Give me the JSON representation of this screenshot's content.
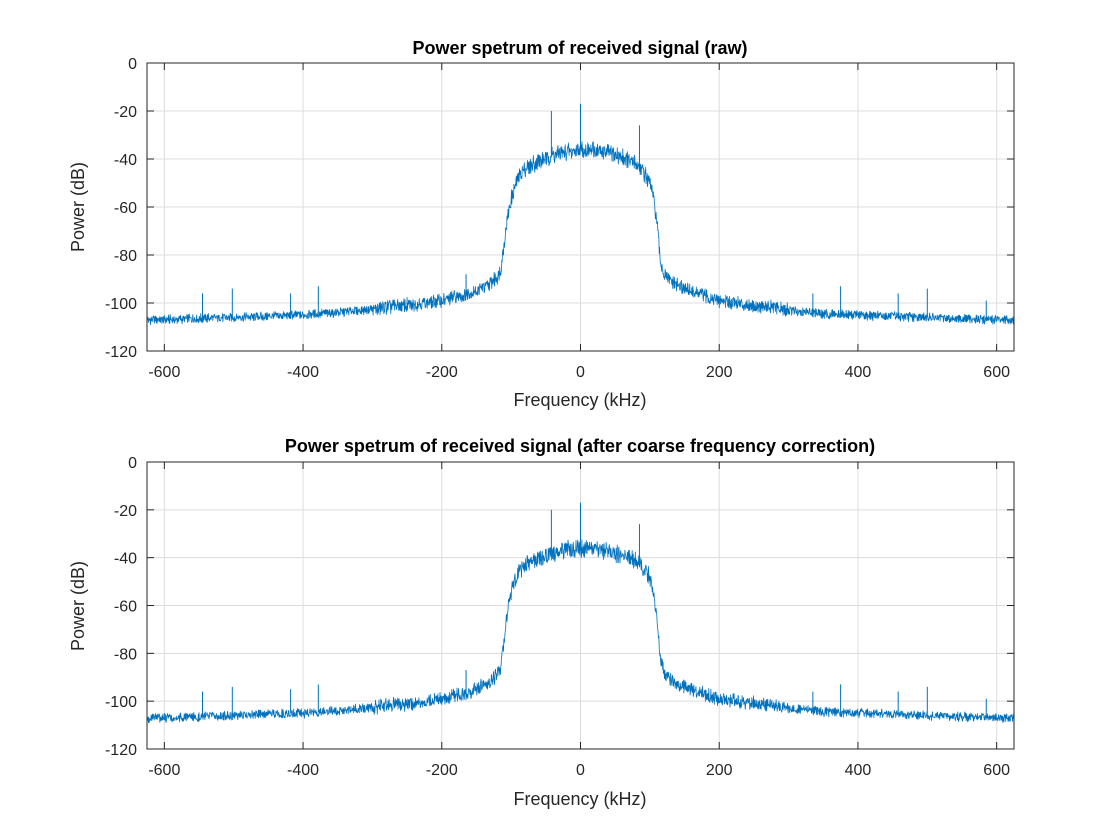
{
  "colors": {
    "series": "#0072BD",
    "axis": "#262626",
    "grid": "#dcdcdc"
  },
  "chart_data": [
    {
      "type": "line",
      "title": "Power spetrum of received signal (raw)",
      "xlabel": "Frequency (kHz)",
      "ylabel": "Power (dB)",
      "xlim": [
        -625,
        625
      ],
      "ylim": [
        -120,
        0
      ],
      "xticks": [
        -600,
        -400,
        -200,
        0,
        200,
        400,
        600
      ],
      "yticks": [
        0,
        -20,
        -40,
        -60,
        -80,
        -100,
        -120
      ],
      "grid": true,
      "series": [
        {
          "x": [
            -625,
            -600,
            -550,
            -500,
            -450,
            -400,
            -350,
            -300,
            -250,
            -200,
            -170,
            -150,
            -130,
            -120,
            -115,
            -110,
            -105,
            -100,
            -95,
            -90,
            -80,
            -60,
            -40,
            -20,
            0,
            20,
            40,
            60,
            80,
            90,
            100,
            105,
            110,
            115,
            120,
            130,
            150,
            170,
            200,
            250,
            300,
            350,
            400,
            450,
            500,
            550,
            600,
            625
          ],
          "y": [
            -107,
            -107,
            -106.5,
            -106,
            -105.5,
            -105,
            -104,
            -102.5,
            -101,
            -99,
            -97,
            -95,
            -92,
            -89,
            -86,
            -75,
            -64,
            -57,
            -52,
            -48,
            -44,
            -41,
            -38.5,
            -37,
            -36,
            -36.5,
            -37.5,
            -39,
            -42,
            -45,
            -50,
            -56,
            -66,
            -82,
            -88,
            -91,
            -94,
            -96,
            -99,
            -101,
            -103,
            -104.5,
            -105,
            -105.5,
            -106,
            -106.5,
            -107,
            -107
          ]
        }
      ],
      "spikes": [
        {
          "x": -545,
          "y": -96
        },
        {
          "x": -502,
          "y": -94
        },
        {
          "x": -418,
          "y": -96
        },
        {
          "x": -378,
          "y": -93
        },
        {
          "x": -165,
          "y": -88
        },
        {
          "x": -42,
          "y": -20
        },
        {
          "x": 0,
          "y": -17
        },
        {
          "x": 85,
          "y": -26
        },
        {
          "x": 335,
          "y": -96
        },
        {
          "x": 375,
          "y": -93
        },
        {
          "x": 458,
          "y": -96
        },
        {
          "x": 500,
          "y": -94
        },
        {
          "x": 585,
          "y": -99
        }
      ]
    },
    {
      "type": "line",
      "title": "Power spetrum of received signal (after coarse frequency correction)",
      "xlabel": "Frequency (kHz)",
      "ylabel": "Power (dB)",
      "xlim": [
        -625,
        625
      ],
      "ylim": [
        -120,
        0
      ],
      "xticks": [
        -600,
        -400,
        -200,
        0,
        200,
        400,
        600
      ],
      "yticks": [
        0,
        -20,
        -40,
        -60,
        -80,
        -100,
        -120
      ],
      "grid": true,
      "series": [
        {
          "x": [
            -625,
            -600,
            -550,
            -500,
            -450,
            -400,
            -350,
            -300,
            -250,
            -200,
            -170,
            -150,
            -130,
            -120,
            -115,
            -110,
            -105,
            -100,
            -95,
            -90,
            -80,
            -60,
            -40,
            -20,
            0,
            20,
            40,
            60,
            80,
            90,
            100,
            105,
            110,
            115,
            120,
            130,
            150,
            170,
            200,
            250,
            300,
            350,
            400,
            450,
            500,
            550,
            600,
            625
          ],
          "y": [
            -107,
            -107,
            -106.5,
            -106,
            -105.5,
            -105,
            -104,
            -102.5,
            -101,
            -99,
            -97,
            -95,
            -92,
            -89,
            -86,
            -74,
            -62,
            -55,
            -50,
            -46,
            -43,
            -40,
            -38,
            -36.5,
            -36,
            -36.5,
            -37.5,
            -39,
            -41,
            -44,
            -48,
            -55,
            -66,
            -82,
            -88,
            -91,
            -94,
            -96,
            -99,
            -101,
            -103,
            -104.5,
            -105,
            -105.5,
            -106,
            -106.5,
            -107,
            -107
          ]
        }
      ],
      "spikes": [
        {
          "x": -545,
          "y": -96
        },
        {
          "x": -502,
          "y": -94
        },
        {
          "x": -418,
          "y": -95
        },
        {
          "x": -378,
          "y": -93
        },
        {
          "x": -165,
          "y": -87
        },
        {
          "x": -42,
          "y": -20
        },
        {
          "x": 0,
          "y": -17
        },
        {
          "x": 85,
          "y": -26
        },
        {
          "x": 335,
          "y": -96
        },
        {
          "x": 375,
          "y": -93
        },
        {
          "x": 458,
          "y": -96
        },
        {
          "x": 500,
          "y": -94
        },
        {
          "x": 585,
          "y": -99
        }
      ]
    }
  ]
}
